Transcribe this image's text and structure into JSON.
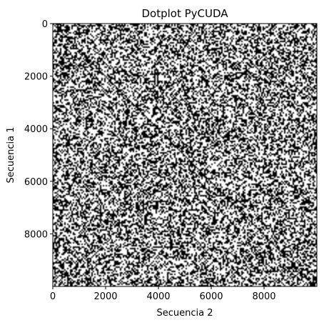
{
  "chart_data": {
    "type": "heatmap",
    "subtype": "dotplot",
    "title": "Dotplot PyCUDA",
    "xlabel": "Secuencia 2",
    "ylabel": "Secuencia 1",
    "xlim": [
      0,
      10000
    ],
    "ylim": [
      10000,
      0
    ],
    "x_ticks": [
      0,
      2000,
      4000,
      6000,
      8000
    ],
    "y_ticks": [
      0,
      2000,
      4000,
      6000,
      8000
    ],
    "colors": {
      "match": "#000000",
      "mismatch": "#ffffff"
    },
    "grid": false,
    "legend": "none"
  }
}
